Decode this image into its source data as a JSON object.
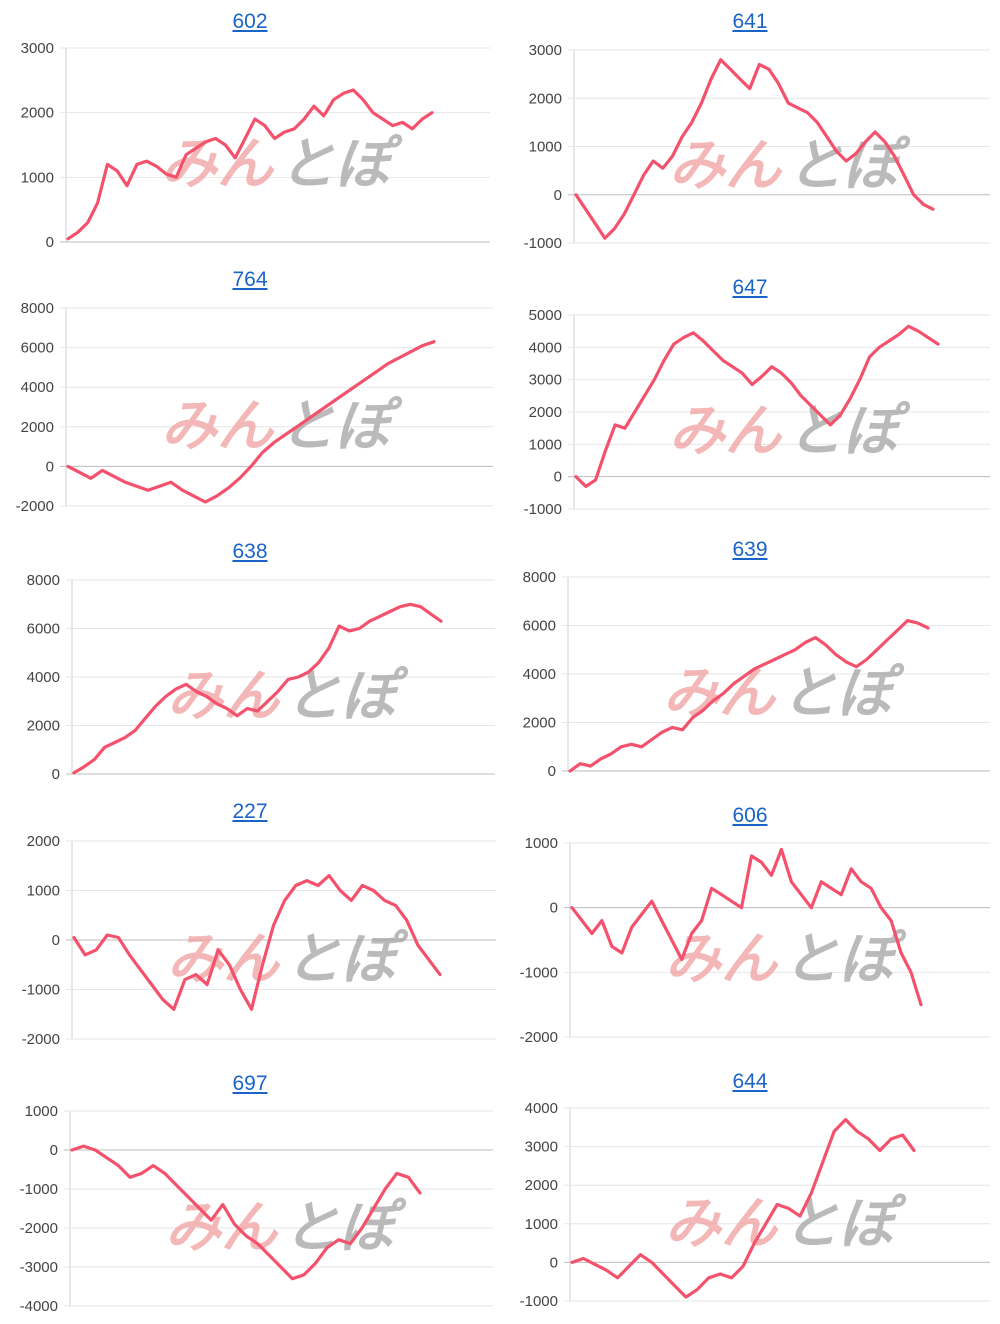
{
  "watermark": {
    "part1": "みん",
    "part2": "とぽ"
  },
  "line_color": "#f4516c",
  "title_color": "#1a64c8",
  "chart_data": [
    {
      "type": "line",
      "title": "602",
      "yticks": [
        0,
        1000,
        2000,
        3000
      ],
      "ylim": [
        0,
        3000
      ],
      "series": [
        {
          "values": [
            50,
            150,
            300,
            600,
            1200,
            1100,
            870,
            1200,
            1250,
            1170,
            1050,
            1000,
            1350,
            1450,
            1550,
            1600,
            1500,
            1300,
            1600,
            1900,
            1800,
            1600,
            1700,
            1750,
            1900,
            2100,
            1950,
            2200,
            2300,
            2350,
            2200,
            2000,
            1900,
            1800,
            1850,
            1750,
            1900,
            2000
          ]
        }
      ]
    },
    {
      "type": "line",
      "title": "641",
      "yticks": [
        -1000,
        0,
        1000,
        2000,
        3000
      ],
      "ylim": [
        -1000,
        3000
      ],
      "series": [
        {
          "values": [
            0,
            -300,
            -600,
            -900,
            -700,
            -400,
            0,
            400,
            700,
            550,
            800,
            1200,
            1500,
            1900,
            2400,
            2800,
            2600,
            2400,
            2200,
            2700,
            2600,
            2300,
            1900,
            1800,
            1700,
            1500,
            1200,
            900,
            700,
            850,
            1100,
            1300,
            1100,
            800,
            400,
            0,
            -200,
            -300
          ]
        }
      ]
    },
    {
      "type": "line",
      "title": "764",
      "yticks": [
        -2000,
        0,
        2000,
        4000,
        6000,
        8000
      ],
      "ylim": [
        -2000,
        8000
      ],
      "series": [
        {
          "values": [
            0,
            -300,
            -600,
            -200,
            -500,
            -800,
            -1000,
            -1200,
            -1000,
            -800,
            -1200,
            -1500,
            -1800,
            -1500,
            -1100,
            -600,
            0,
            700,
            1200,
            1600,
            2000,
            2400,
            2800,
            3200,
            3600,
            4000,
            4400,
            4800,
            5200,
            5500,
            5800,
            6100,
            6300
          ]
        }
      ]
    },
    {
      "type": "line",
      "title": "647",
      "yticks": [
        -1000,
        0,
        1000,
        2000,
        3000,
        4000,
        5000
      ],
      "ylim": [
        -1000,
        5000
      ],
      "series": [
        {
          "values": [
            0,
            -300,
            -100,
            800,
            1600,
            1500,
            2000,
            2500,
            3000,
            3600,
            4100,
            4300,
            4450,
            4200,
            3900,
            3600,
            3400,
            3200,
            2850,
            3100,
            3400,
            3200,
            2900,
            2500,
            2200,
            1900,
            1600,
            1900,
            2400,
            3000,
            3700,
            4000,
            4200,
            4400,
            4650,
            4500,
            4300,
            4100
          ]
        }
      ]
    },
    {
      "type": "line",
      "title": "638",
      "yticks": [
        0,
        2000,
        4000,
        6000,
        8000
      ],
      "ylim": [
        0,
        8000
      ],
      "series": [
        {
          "values": [
            50,
            300,
            600,
            1100,
            1300,
            1500,
            1800,
            2300,
            2800,
            3200,
            3500,
            3700,
            3400,
            3200,
            2900,
            2700,
            2400,
            2700,
            2600,
            3000,
            3400,
            3900,
            4000,
            4200,
            4600,
            5200,
            6100,
            5900,
            6000,
            6300,
            6500,
            6700,
            6900,
            7000,
            6900,
            6600,
            6300
          ]
        }
      ]
    },
    {
      "type": "line",
      "title": "639",
      "yticks": [
        0,
        2000,
        4000,
        6000,
        8000
      ],
      "ylim": [
        0,
        8000
      ],
      "series": [
        {
          "values": [
            0,
            300,
            200,
            500,
            700,
            1000,
            1100,
            1000,
            1300,
            1600,
            1800,
            1700,
            2200,
            2500,
            2900,
            3200,
            3600,
            3900,
            4200,
            4400,
            4600,
            4800,
            5000,
            5300,
            5500,
            5200,
            4800,
            4500,
            4300,
            4600,
            5000,
            5400,
            5800,
            6200,
            6100,
            5900
          ]
        }
      ]
    },
    {
      "type": "line",
      "title": "227",
      "yticks": [
        -2000,
        -1000,
        0,
        1000,
        2000
      ],
      "ylim": [
        -2000,
        2000
      ],
      "series": [
        {
          "values": [
            50,
            -300,
            -200,
            100,
            50,
            -300,
            -600,
            -900,
            -1200,
            -1400,
            -800,
            -700,
            -900,
            -200,
            -500,
            -1000,
            -1400,
            -500,
            300,
            800,
            1100,
            1200,
            1100,
            1300,
            1000,
            800,
            1100,
            1000,
            800,
            700,
            400,
            -100,
            -400,
            -700
          ]
        }
      ]
    },
    {
      "type": "line",
      "title": "606",
      "yticks": [
        -2000,
        -1000,
        0,
        1000
      ],
      "ylim": [
        -2000,
        1000
      ],
      "series": [
        {
          "values": [
            0,
            -200,
            -400,
            -200,
            -600,
            -700,
            -300,
            -100,
            100,
            -200,
            -500,
            -800,
            -400,
            -200,
            300,
            200,
            100,
            0,
            800,
            700,
            500,
            900,
            400,
            200,
            0,
            400,
            300,
            200,
            600,
            400,
            300,
            0,
            -200,
            -700,
            -1000,
            -1500
          ]
        }
      ]
    },
    {
      "type": "line",
      "title": "697",
      "yticks": [
        -4000,
        -3000,
        -2000,
        -1000,
        0,
        1000
      ],
      "ylim": [
        -4000,
        1000
      ],
      "series": [
        {
          "values": [
            0,
            100,
            0,
            -200,
            -400,
            -700,
            -600,
            -400,
            -600,
            -900,
            -1200,
            -1500,
            -1800,
            -1400,
            -1900,
            -2200,
            -2400,
            -2700,
            -3000,
            -3300,
            -3200,
            -2900,
            -2500,
            -2300,
            -2400,
            -2000,
            -1500,
            -1000,
            -600,
            -700,
            -1100
          ]
        }
      ]
    },
    {
      "type": "line",
      "title": "644",
      "yticks": [
        -1000,
        0,
        1000,
        2000,
        3000,
        4000
      ],
      "ylim": [
        -1000,
        4000
      ],
      "series": [
        {
          "values": [
            0,
            100,
            -50,
            -200,
            -400,
            -100,
            200,
            0,
            -300,
            -600,
            -900,
            -700,
            -400,
            -300,
            -400,
            -100,
            500,
            1000,
            1500,
            1400,
            1200,
            1800,
            2600,
            3400,
            3700,
            3400,
            3200,
            2900,
            3200,
            3300,
            2900
          ]
        }
      ]
    }
  ]
}
